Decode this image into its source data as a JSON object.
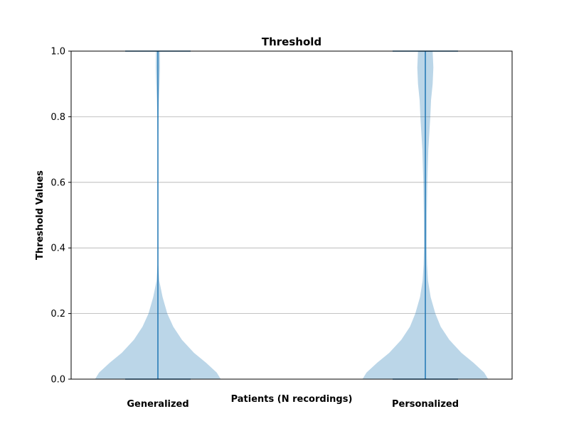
{
  "chart_data": {
    "type": "violin",
    "title": "Threshold",
    "xlabel": "Patients (N recordings)",
    "ylabel": "Threshold Values",
    "ylim": [
      0,
      1
    ],
    "yticks": [
      "0.0",
      "0.2",
      "0.4",
      "0.6",
      "0.8",
      "1.0"
    ],
    "grid": "y",
    "categories": [
      "Generalized",
      "Personalized"
    ],
    "series": [
      {
        "category": "Generalized",
        "min": 0.0,
        "max": 1.0,
        "density": [
          [
            0.0,
            0.94
          ],
          [
            0.02,
            0.88
          ],
          [
            0.05,
            0.72
          ],
          [
            0.08,
            0.54
          ],
          [
            0.12,
            0.36
          ],
          [
            0.16,
            0.23
          ],
          [
            0.2,
            0.14
          ],
          [
            0.25,
            0.07
          ],
          [
            0.3,
            0.02
          ],
          [
            0.35,
            0.005
          ],
          [
            0.4,
            0.004
          ],
          [
            0.5,
            0.003
          ],
          [
            0.6,
            0.003
          ],
          [
            0.7,
            0.004
          ],
          [
            0.8,
            0.008
          ],
          [
            0.85,
            0.015
          ],
          [
            0.9,
            0.025
          ],
          [
            0.95,
            0.032
          ],
          [
            1.0,
            0.03
          ]
        ]
      },
      {
        "category": "Personalized",
        "min": 0.0,
        "max": 1.0,
        "density": [
          [
            0.0,
            0.94
          ],
          [
            0.02,
            0.88
          ],
          [
            0.05,
            0.72
          ],
          [
            0.08,
            0.54
          ],
          [
            0.12,
            0.36
          ],
          [
            0.16,
            0.23
          ],
          [
            0.2,
            0.15
          ],
          [
            0.25,
            0.08
          ],
          [
            0.3,
            0.04
          ],
          [
            0.35,
            0.025
          ],
          [
            0.4,
            0.02
          ],
          [
            0.5,
            0.022
          ],
          [
            0.6,
            0.03
          ],
          [
            0.7,
            0.045
          ],
          [
            0.75,
            0.06
          ],
          [
            0.8,
            0.075
          ],
          [
            0.85,
            0.085
          ],
          [
            0.9,
            0.11
          ],
          [
            0.95,
            0.12
          ],
          [
            1.0,
            0.11
          ]
        ]
      }
    ],
    "colors": {
      "fill": "#1f77b4",
      "line": "#1f77b4",
      "grid": "#b0b0b0"
    }
  }
}
